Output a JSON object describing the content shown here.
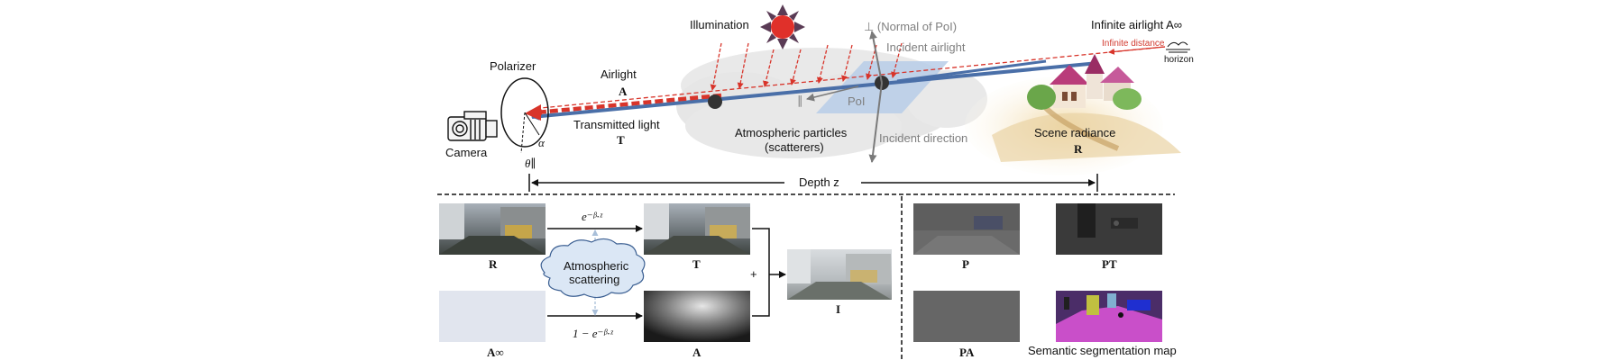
{
  "top": {
    "illumination": "Illumination",
    "normal_of_poi": "⊥ (Normal of PoI)",
    "incident_airlight": "Incident airlight",
    "infinite_airlight": "Infinite airlight A∞",
    "infinite_distance": "Infinite distance",
    "horizon": "horizon",
    "polarizer": "Polarizer",
    "airlight": "Airlight",
    "airlight_sym": "A",
    "transmitted_light": "Transmitted light",
    "transmitted_sym": "T",
    "camera": "Camera",
    "alpha": "α",
    "theta": "θ∥",
    "parallel_mark": "∥",
    "poi": "PoI",
    "atmos_particles_1": "Atmospheric particles",
    "atmos_particles_2": "(scatterers)",
    "incident_direction": "Incident direction",
    "scene_radiance": "Scene radiance",
    "scene_radiance_sym": "R",
    "depth": "Depth z"
  },
  "bottom": {
    "label_R": "R",
    "label_T": "T",
    "label_I": "I",
    "label_Ainf": "A∞",
    "label_A": "A",
    "transmission_expr": "e⁻ᵝ·ᶻ",
    "airlight_expr": "1 − e⁻ᵝ·ᶻ",
    "plus": "+",
    "cloud_1": "Atmospheric",
    "cloud_2": "scattering",
    "label_P": "P",
    "label_PT": "PT",
    "label_PA": "PA",
    "label_seg": "Semantic segmentation map"
  },
  "colors": {
    "airlight_red": "#d8342a",
    "transmit_blue": "#4a6fa8",
    "sun": "#e0302a",
    "sun_rays": "#5a3b55",
    "arrow_gray": "#7a7a7a",
    "poi_plane": "#b7cde8",
    "cloud_gray": "#e6e6e6",
    "house_roof": "#b93c7a",
    "ground_sand": "#e8c98f"
  }
}
